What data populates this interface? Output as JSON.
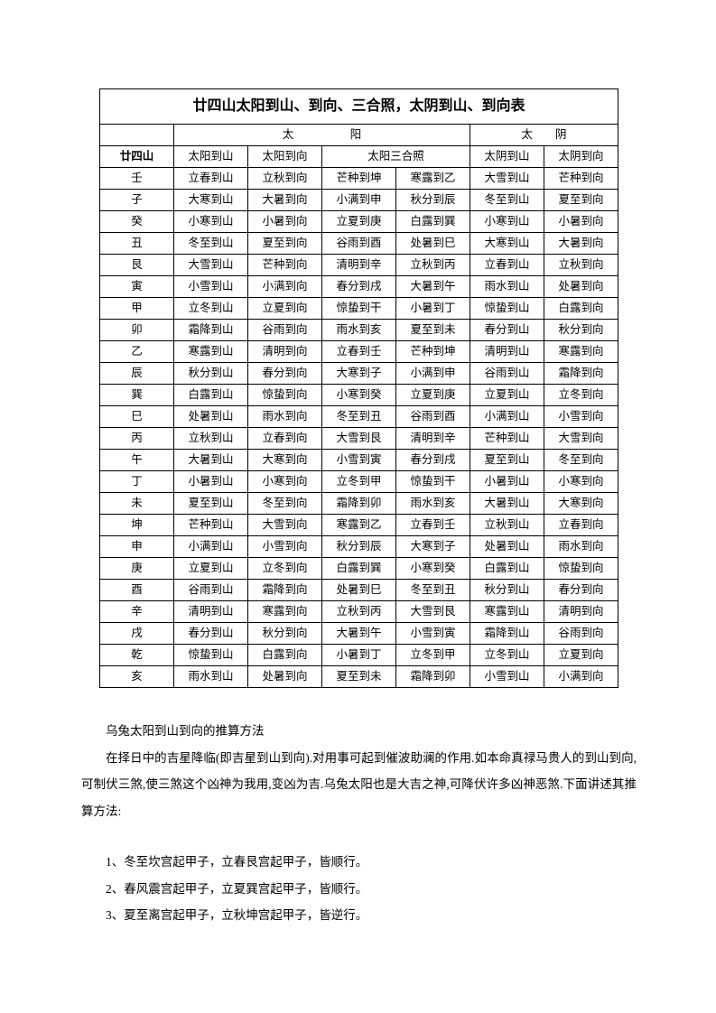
{
  "table": {
    "title": "廿四山太阳到山、到向、三合照，太阴到山、到向表",
    "group_headers": {
      "sun_group": "太　　　　　阳",
      "moon_group": "太　　阴"
    },
    "col_headers": {
      "col0": "廿四山",
      "col1": "太阳到山",
      "col2": "太阳到向",
      "col34": "太阳三合照",
      "col5": "太阴到山",
      "col6": "太阴到向"
    },
    "rows": [
      [
        "壬",
        "立春到山",
        "立秋到向",
        "芒种到坤",
        "寒露到乙",
        "大雪到山",
        "芒种到向"
      ],
      [
        "子",
        "大寒到山",
        "大暑到向",
        "小满到申",
        "秋分到辰",
        "冬至到山",
        "夏至到向"
      ],
      [
        "癸",
        "小寒到山",
        "小暑到向",
        "立夏到庚",
        "白露到巽",
        "小寒到山",
        "小暑到向"
      ],
      [
        "丑",
        "冬至到山",
        "夏至到向",
        "谷雨到酉",
        "处暑到巳",
        "大寒到山",
        "大暑到向"
      ],
      [
        "艮",
        "大雪到山",
        "芒种到向",
        "清明到辛",
        "立秋到丙",
        "立春到山",
        "立秋到向"
      ],
      [
        "寅",
        "小雪到山",
        "小满到向",
        "春分到戌",
        "大暑到午",
        "雨水到山",
        "处暑到向"
      ],
      [
        "甲",
        "立冬到山",
        "立夏到向",
        "惊蛰到干",
        "小暑到丁",
        "惊蛰到山",
        "白露到向"
      ],
      [
        "卯",
        "霜降到山",
        "谷雨到向",
        "雨水到亥",
        "夏至到未",
        "春分到山",
        "秋分到向"
      ],
      [
        "乙",
        "寒露到山",
        "清明到向",
        "立春到壬",
        "芒种到坤",
        "清明到山",
        "寒露到向"
      ],
      [
        "辰",
        "秋分到山",
        "春分到向",
        "大寒到子",
        "小满到申",
        "谷雨到山",
        "霜降到向"
      ],
      [
        "巽",
        "白露到山",
        "惊蛰到向",
        "小寒到癸",
        "立夏到庚",
        "立夏到山",
        "立冬到向"
      ],
      [
        "巳",
        "处暑到山",
        "雨水到向",
        "冬至到丑",
        "谷雨到酉",
        "小满到山",
        "小雪到向"
      ],
      [
        "丙",
        "立秋到山",
        "立春到向",
        "大雪到艮",
        "清明到辛",
        "芒种到山",
        "大雪到向"
      ],
      [
        "午",
        "大暑到山",
        "大寒到向",
        "小雪到寅",
        "春分到戌",
        "夏至到山",
        "冬至到向"
      ],
      [
        "丁",
        "小暑到山",
        "小寒到向",
        "立冬到甲",
        "惊蛰到干",
        "小暑到山",
        "小寒到向"
      ],
      [
        "未",
        "夏至到山",
        "冬至到向",
        "霜降到卯",
        "雨水到亥",
        "大暑到山",
        "大寒到向"
      ],
      [
        "坤",
        "芒种到山",
        "大雪到向",
        "寒露到乙",
        "立春到壬",
        "立秋到山",
        "立春到向"
      ],
      [
        "申",
        "小满到山",
        "小雪到向",
        "秋分到辰",
        "大寒到子",
        "处暑到山",
        "雨水到向"
      ],
      [
        "庚",
        "立夏到山",
        "立冬到向",
        "白露到巽",
        "小寒到癸",
        "白露到山",
        "惊蛰到向"
      ],
      [
        "酉",
        "谷雨到山",
        "霜降到向",
        "处暑到巳",
        "冬至到丑",
        "秋分到山",
        "春分到向"
      ],
      [
        "辛",
        "清明到山",
        "寒露到向",
        "立秋到丙",
        "大雪到艮",
        "寒露到山",
        "清明到向"
      ],
      [
        "戌",
        "春分到山",
        "秋分到向",
        "大暑到午",
        "小雪到寅",
        "霜降到山",
        "谷雨到向"
      ],
      [
        "乾",
        "惊蛰到山",
        "白露到向",
        "小暑到丁",
        "立冬到甲",
        "立冬到山",
        "立夏到向"
      ],
      [
        "亥",
        "雨水到山",
        "处暑到向",
        "夏至到未",
        "霜降到卯",
        "小雪到山",
        "小满到向"
      ]
    ]
  },
  "text": {
    "subtitle": "乌兔太阳到山到向的推算方法",
    "paragraph": "在择日中的吉星降临(即吉星到山到向).对用事可起到催波助澜的作用.如本命真禄马贵人的到山到向,可制伏三煞,使三煞这个凶神为我用,变凶为吉.乌兔太阳也是大吉之神,可降伏许多凶神恶煞.下面讲述其推算方法:",
    "items": [
      "1、冬至坎宫起甲子，立春艮宫起甲子，皆顺行。",
      "2、春风震宫起甲子，立夏巽宫起甲子，皆顺行。",
      "3、夏至离宫起甲子，立秋坤宫起甲子，皆逆行。"
    ]
  }
}
